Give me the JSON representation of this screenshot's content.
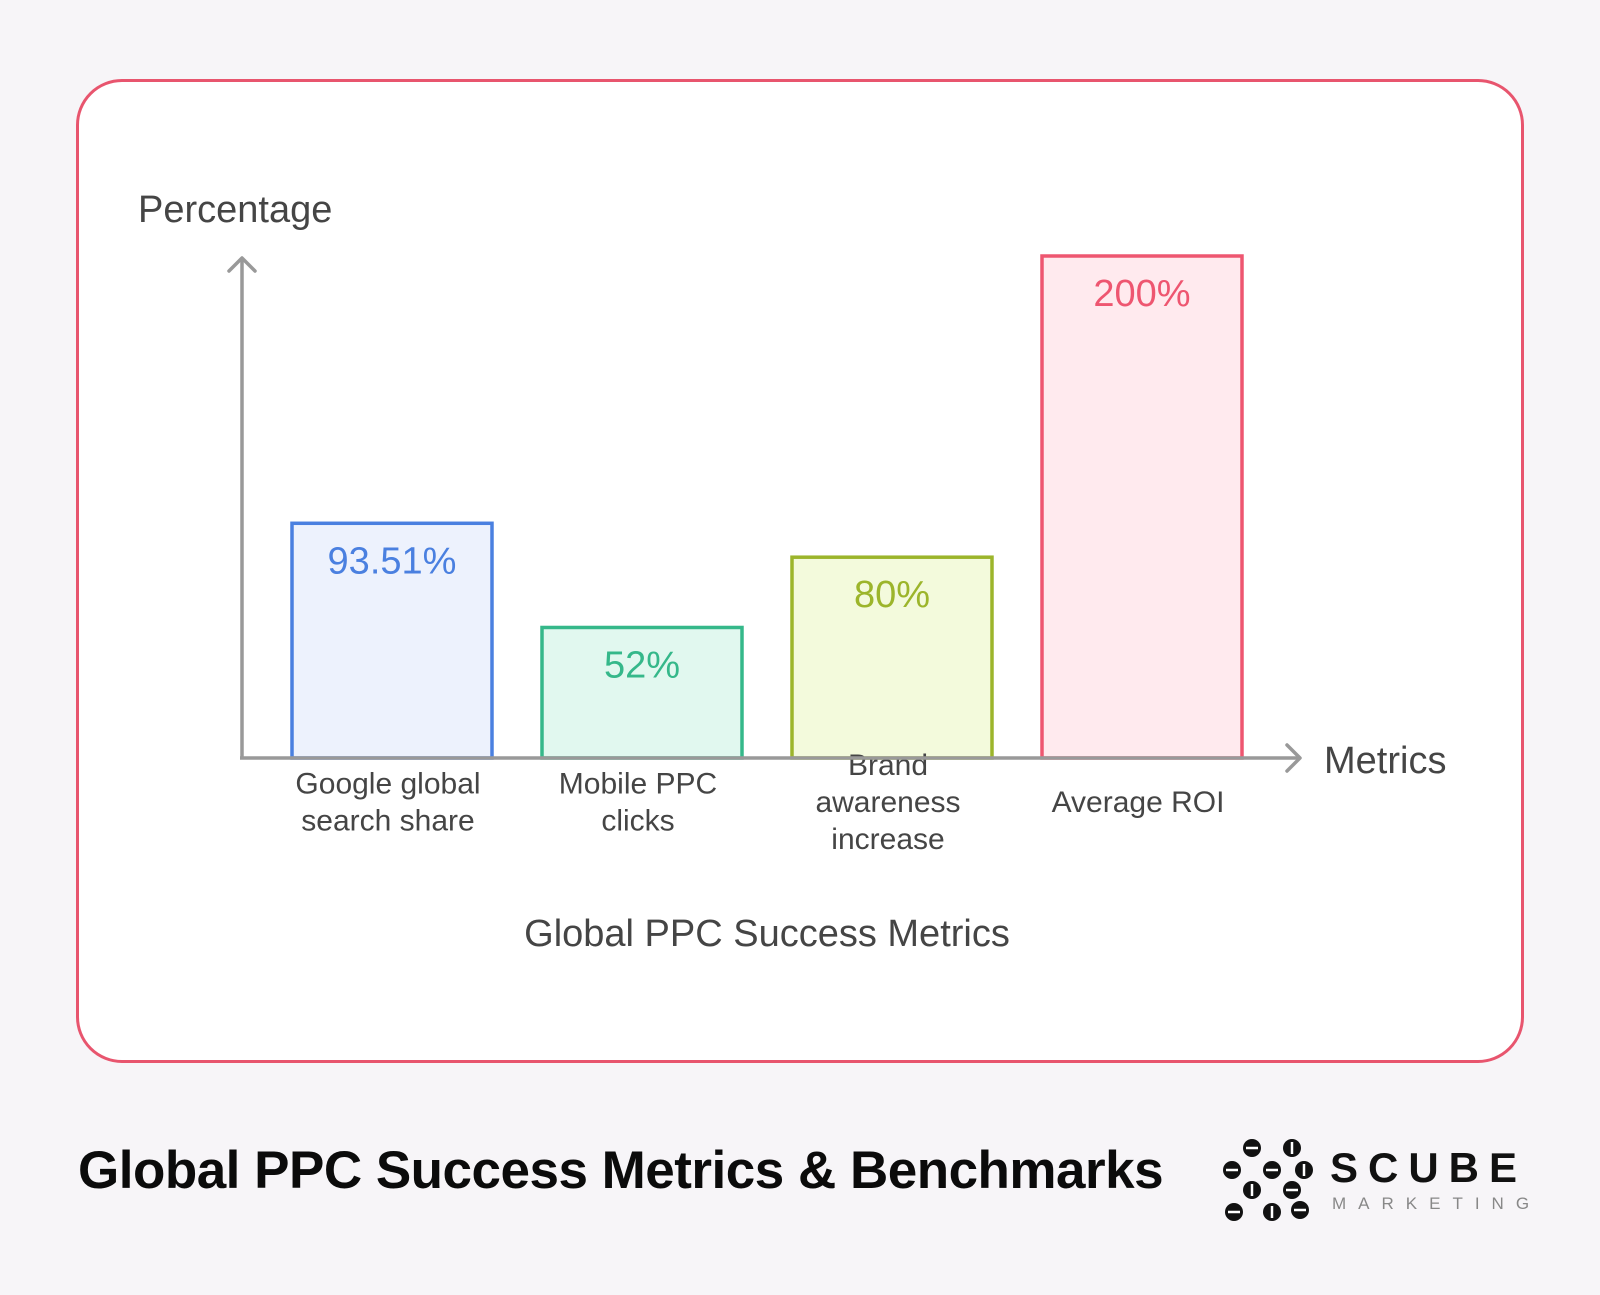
{
  "chart_data": {
    "type": "bar",
    "title": "Global PPC Success Metrics",
    "xlabel": "Metrics",
    "ylabel": "Percentage",
    "categories": [
      [
        "Google global",
        "search share"
      ],
      [
        "Mobile PPC",
        "clicks"
      ],
      [
        "Brand",
        "awareness",
        "increase"
      ],
      [
        "Average ROI"
      ]
    ],
    "values": [
      93.51,
      52,
      80,
      200
    ],
    "value_labels": [
      "93.51%",
      "52%",
      "80%",
      "200%"
    ],
    "colors": [
      {
        "stroke": "#4a80e0",
        "fill": "#edf2fd",
        "text": "#4a80e0"
      },
      {
        "stroke": "#35b88a",
        "fill": "#e1f8ef",
        "text": "#35b88a"
      },
      {
        "stroke": "#9cb52b",
        "fill": "#f3fadc",
        "text": "#9cb52b"
      },
      {
        "stroke": "#ee5670",
        "fill": "#ffeaee",
        "text": "#ee5670"
      }
    ],
    "ylim": [
      0,
      200
    ],
    "grid": false,
    "legend": "none"
  },
  "footer": {
    "title": "Global PPC Success Metrics & Benchmarks",
    "brand_name": "SCUBE",
    "brand_sub": "MARKETING",
    "brand_logo_icon": "scube-dots-logo-icon"
  },
  "colors": {
    "background": "#f7f5f8",
    "card_border": "#e8556e",
    "axis": "#999999",
    "text": "#454545"
  }
}
